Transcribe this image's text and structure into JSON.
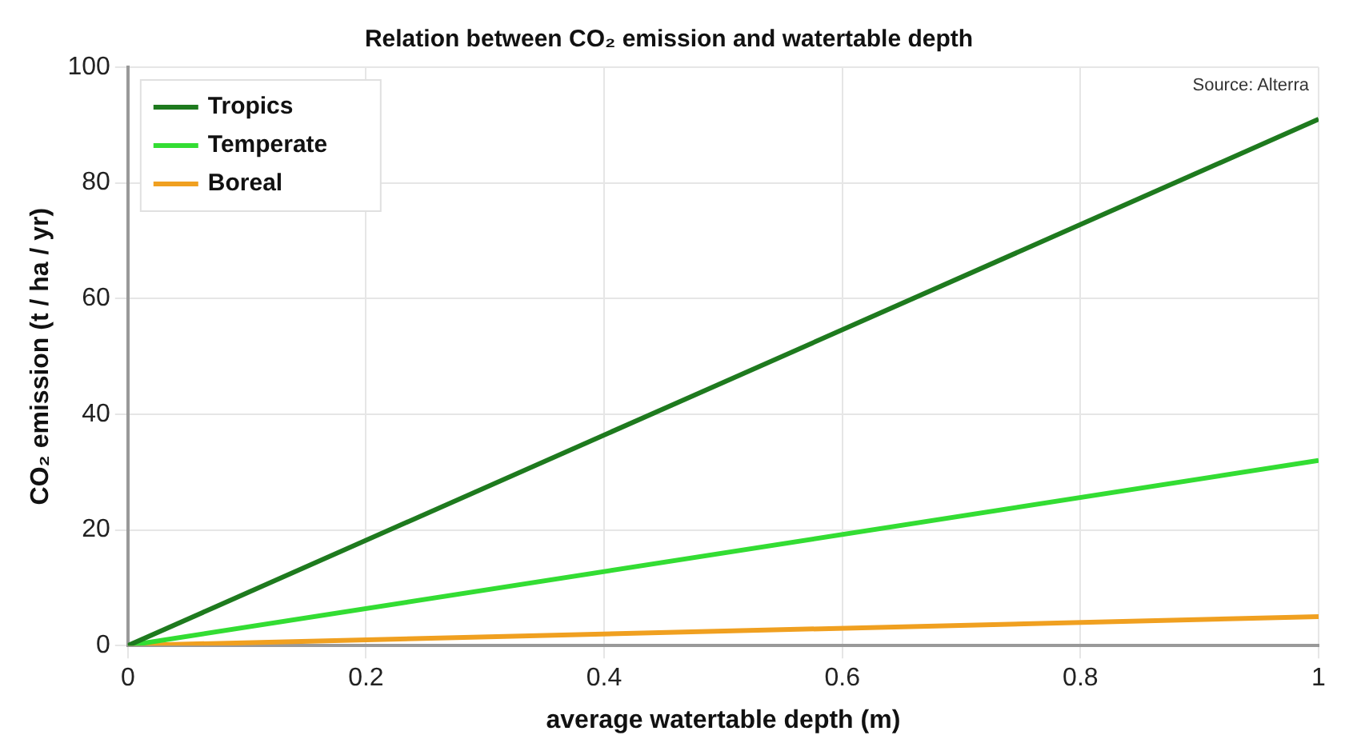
{
  "chart_data": {
    "type": "line",
    "title": "Relation between CO₂ emission and watertable depth",
    "xlabel": "average watertable depth (m)",
    "ylabel": "CO₂ emission (t / ha / yr)",
    "x": [
      0,
      1
    ],
    "series": [
      {
        "name": "Tropics",
        "color": "#1e7a1e",
        "values": [
          0,
          91
        ]
      },
      {
        "name": "Temperate",
        "color": "#33dd33",
        "values": [
          0,
          32
        ]
      },
      {
        "name": "Boreal",
        "color": "#f0a020",
        "values": [
          0,
          5
        ]
      }
    ],
    "xlim": [
      0,
      1
    ],
    "xticks": [
      0,
      0.2,
      0.4,
      0.6,
      0.8,
      1
    ],
    "ylim": [
      0,
      100
    ],
    "yticks": [
      0,
      20,
      40,
      60,
      80,
      100
    ],
    "grid": true,
    "legend": "top left",
    "marker": "none",
    "line_style": "solid",
    "annotations": [
      "Source: Alterra"
    ]
  }
}
